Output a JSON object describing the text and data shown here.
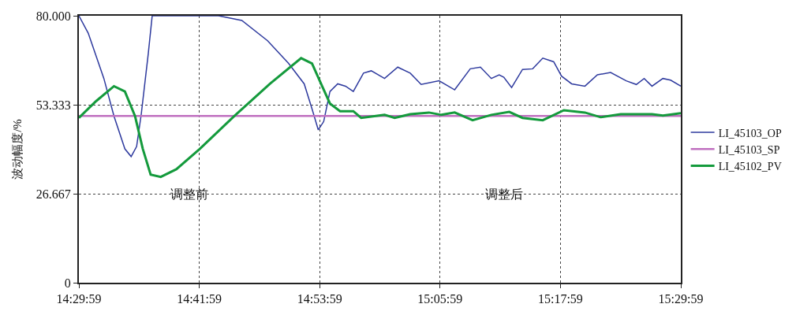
{
  "chart_data": {
    "type": "line",
    "ylabel": "波动幅度/%",
    "xlim": [
      14.4997,
      15.4997
    ],
    "xticks": [
      {
        "value": 14.4997,
        "label": "14:29:59"
      },
      {
        "value": 14.6997,
        "label": "14:41:59"
      },
      {
        "value": 14.8997,
        "label": "14:53:59"
      },
      {
        "value": 15.0997,
        "label": "15:05:59"
      },
      {
        "value": 15.2997,
        "label": "15:17:59"
      },
      {
        "value": 15.4997,
        "label": "15:29:59"
      }
    ],
    "ylim": [
      0,
      80
    ],
    "yticks": [
      0,
      26.667,
      53.333,
      {
        "value": 80,
        "label": "80.000"
      }
    ],
    "grid": true,
    "legend": "right",
    "marker": "none",
    "line_style": "solid",
    "annotations": [
      "调整前",
      "调整后"
    ],
    "series": [
      {
        "name": "LI_45103_OP",
        "color": "#2e3a9e",
        "x": [
          14.4997,
          14.5152,
          14.5412,
          14.558,
          14.5761,
          14.5865,
          14.5956,
          14.6033,
          14.615,
          14.6215,
          14.7316,
          14.7704,
          14.8132,
          14.8481,
          14.874,
          14.887,
          14.8974,
          14.9064,
          14.9168,
          14.9297,
          14.9427,
          14.9556,
          14.9725,
          14.9854,
          15.0075,
          15.0295,
          15.0502,
          15.0683,
          15.0981,
          15.124,
          15.1499,
          15.1668,
          15.1849,
          15.1979,
          15.2056,
          15.2186,
          15.2367,
          15.2536,
          15.2704,
          15.2885,
          15.3015,
          15.3183,
          15.3404,
          15.3611,
          15.3831,
          15.409,
          15.4258,
          15.4388,
          15.4518,
          15.4699,
          15.4828,
          15.4997
        ],
        "values": [
          80,
          74.8,
          61.2,
          49.9,
          40.1,
          37.8,
          40.8,
          50.5,
          68.7,
          80,
          80,
          78.6,
          72.5,
          65.7,
          59.6,
          52.1,
          45.8,
          48.3,
          57.3,
          59.6,
          58.9,
          57.3,
          62.8,
          63.5,
          61.2,
          64.6,
          62.8,
          59.4,
          60.5,
          57.8,
          64.1,
          64.6,
          61.2,
          62.3,
          61.6,
          58.5,
          63.9,
          64.1,
          67.3,
          66.2,
          61.9,
          59.6,
          58.9,
          62.3,
          63.0,
          60.5,
          59.4,
          61.2,
          58.9,
          61.2,
          60.7,
          58.9
        ]
      },
      {
        "name": "LI_45103_SP",
        "color": "#c070c0",
        "x": [
          14.4997,
          15.4997
        ],
        "values": [
          50,
          50
        ]
      },
      {
        "name": "LI_45102_PV",
        "color": "#149a3c",
        "x": [
          14.4997,
          14.5282,
          14.558,
          14.5761,
          14.593,
          14.6059,
          14.6189,
          14.6357,
          14.6616,
          14.7005,
          14.7575,
          14.8171,
          14.8689,
          14.887,
          14.9038,
          14.9168,
          14.9336,
          14.9556,
          14.9686,
          14.9906,
          15.0075,
          15.0243,
          15.0502,
          15.0813,
          15.102,
          15.124,
          15.1538,
          15.1849,
          15.2147,
          15.2367,
          15.2704,
          15.3054,
          15.3404,
          15.3663,
          15.3999,
          15.4518,
          15.4699,
          15.4997
        ],
        "values": [
          49.4,
          54.4,
          58.9,
          57.3,
          49.9,
          40.1,
          32.4,
          31.7,
          34.0,
          40.1,
          49.9,
          59.6,
          67.3,
          65.7,
          58.9,
          53.7,
          51.4,
          51.4,
          49.4,
          49.9,
          50.3,
          49.4,
          50.5,
          51.0,
          50.3,
          51.0,
          48.7,
          50.3,
          51.2,
          49.4,
          48.7,
          51.7,
          51.0,
          49.6,
          50.5,
          50.5,
          50.1,
          50.8
        ]
      }
    ]
  }
}
